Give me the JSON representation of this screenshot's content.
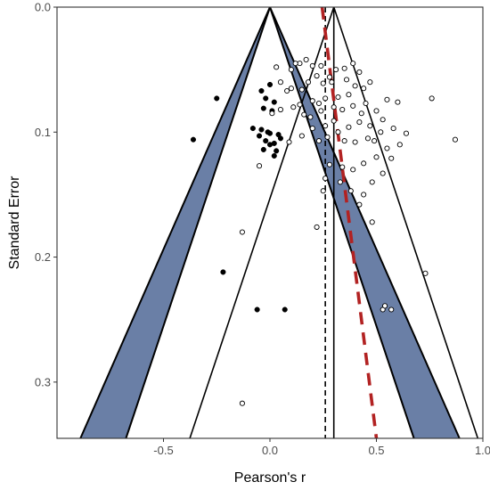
{
  "chart_data": {
    "type": "scatter",
    "title": "",
    "xlabel": "Pearson's r",
    "ylabel": "Standard Error",
    "xlim": [
      -1.0,
      1.0
    ],
    "ylim": [
      0.0,
      0.345
    ],
    "y_reversed": true,
    "x_ticks": [
      -0.5,
      0.0,
      0.5,
      1.0
    ],
    "x_tick_labels": [
      "-0.5",
      "0.0",
      "0.5",
      "1.0"
    ],
    "y_ticks": [
      0.0,
      0.1,
      0.2,
      0.3
    ],
    "y_tick_labels": [
      "0.0",
      "0.1",
      "0.2",
      "0.3"
    ],
    "grid": false,
    "legend": "none",
    "funnels": [
      {
        "center": 0.0,
        "z_inner": 1.96,
        "z_outer": 2.58,
        "shaded": true
      },
      {
        "center": 0.3,
        "z": 1.96,
        "shaded": false
      }
    ],
    "vlines": [
      {
        "x": 0.3,
        "style": "solid"
      },
      {
        "x": 0.26,
        "style": "dashed"
      }
    ],
    "regression_line": {
      "style": "dashed",
      "color": "#b22222",
      "points": [
        [
          0.245,
          0.0
        ],
        [
          0.5,
          0.345
        ]
      ]
    },
    "series": [
      {
        "marker": "filled",
        "points": [
          [
            -0.25,
            0.073
          ],
          [
            -0.36,
            0.106
          ],
          [
            -0.22,
            0.212
          ],
          [
            -0.06,
            0.242
          ],
          [
            0.07,
            0.242
          ],
          [
            -0.04,
            0.067
          ],
          [
            0.0,
            0.062
          ],
          [
            -0.02,
            0.073
          ],
          [
            0.02,
            0.076
          ],
          [
            -0.03,
            0.081
          ],
          [
            0.01,
            0.083
          ],
          [
            -0.08,
            0.097
          ],
          [
            -0.04,
            0.098
          ],
          [
            -0.05,
            0.103
          ],
          [
            -0.01,
            0.1
          ],
          [
            0.0,
            0.101
          ],
          [
            0.04,
            0.102
          ],
          [
            0.05,
            0.105
          ],
          [
            -0.02,
            0.107
          ],
          [
            0.02,
            0.109
          ],
          [
            0.0,
            0.11
          ],
          [
            -0.03,
            0.114
          ],
          [
            0.03,
            0.115
          ],
          [
            0.02,
            0.119
          ]
        ]
      },
      {
        "marker": "open",
        "points": [
          [
            -0.13,
            0.317
          ],
          [
            -0.13,
            0.18
          ],
          [
            -0.05,
            0.127
          ],
          [
            0.03,
            0.048
          ],
          [
            0.05,
            0.06
          ],
          [
            0.1,
            0.05
          ],
          [
            0.14,
            0.045
          ],
          [
            0.17,
            0.042
          ],
          [
            0.2,
            0.047
          ],
          [
            0.22,
            0.055
          ],
          [
            0.18,
            0.06
          ],
          [
            0.1,
            0.065
          ],
          [
            0.15,
            0.066
          ],
          [
            0.25,
            0.061
          ],
          [
            0.28,
            0.056
          ],
          [
            0.31,
            0.05
          ],
          [
            0.35,
            0.049
          ],
          [
            0.39,
            0.045
          ],
          [
            0.42,
            0.052
          ],
          [
            0.47,
            0.06
          ],
          [
            0.44,
            0.065
          ],
          [
            0.37,
            0.07
          ],
          [
            0.32,
            0.072
          ],
          [
            0.26,
            0.073
          ],
          [
            0.2,
            0.075
          ],
          [
            0.23,
            0.077
          ],
          [
            0.14,
            0.078
          ],
          [
            0.11,
            0.08
          ],
          [
            0.05,
            0.082
          ],
          [
            0.01,
            0.085
          ],
          [
            0.16,
            0.086
          ],
          [
            0.19,
            0.088
          ],
          [
            0.24,
            0.083
          ],
          [
            0.3,
            0.08
          ],
          [
            0.34,
            0.082
          ],
          [
            0.39,
            0.079
          ],
          [
            0.45,
            0.077
          ],
          [
            0.5,
            0.083
          ],
          [
            0.55,
            0.074
          ],
          [
            0.6,
            0.076
          ],
          [
            0.53,
            0.09
          ],
          [
            0.47,
            0.095
          ],
          [
            0.42,
            0.092
          ],
          [
            0.37,
            0.096
          ],
          [
            0.32,
            0.1
          ],
          [
            0.27,
            0.104
          ],
          [
            0.23,
            0.107
          ],
          [
            0.15,
            0.103
          ],
          [
            0.09,
            0.108
          ],
          [
            0.35,
            0.107
          ],
          [
            0.4,
            0.108
          ],
          [
            0.46,
            0.105
          ],
          [
            0.52,
            0.1
          ],
          [
            0.58,
            0.097
          ],
          [
            0.64,
            0.101
          ],
          [
            0.61,
            0.11
          ],
          [
            0.55,
            0.113
          ],
          [
            0.5,
            0.12
          ],
          [
            0.44,
            0.125
          ],
          [
            0.39,
            0.13
          ],
          [
            0.34,
            0.128
          ],
          [
            0.28,
            0.126
          ],
          [
            0.26,
            0.137
          ],
          [
            0.33,
            0.14
          ],
          [
            0.38,
            0.147
          ],
          [
            0.44,
            0.15
          ],
          [
            0.48,
            0.14
          ],
          [
            0.53,
            0.133
          ],
          [
            0.76,
            0.073
          ],
          [
            0.87,
            0.106
          ],
          [
            0.25,
            0.147
          ],
          [
            0.22,
            0.176
          ],
          [
            0.42,
            0.158
          ],
          [
            0.48,
            0.172
          ],
          [
            0.73,
            0.213
          ],
          [
            0.53,
            0.242
          ],
          [
            0.54,
            0.239
          ],
          [
            0.57,
            0.242
          ],
          [
            0.12,
            0.045
          ],
          [
            0.24,
            0.047
          ],
          [
            0.29,
            0.06
          ],
          [
            0.4,
            0.063
          ],
          [
            0.3,
            0.091
          ],
          [
            0.2,
            0.097
          ],
          [
            0.43,
            0.085
          ],
          [
            0.08,
            0.067
          ],
          [
            0.36,
            0.058
          ],
          [
            0.26,
            0.095
          ],
          [
            0.49,
            0.107
          ],
          [
            0.57,
            0.121
          ]
        ]
      }
    ]
  }
}
